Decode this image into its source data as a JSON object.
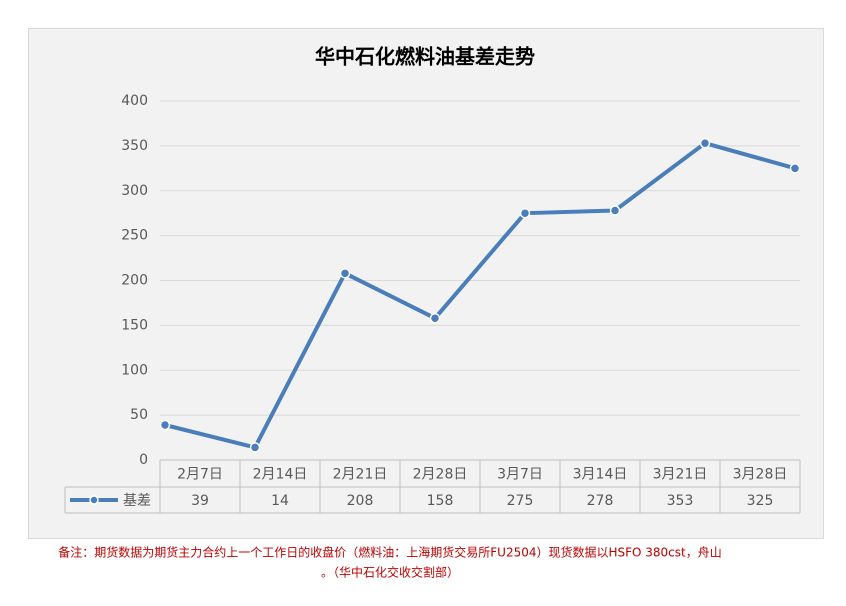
{
  "chart_data": {
    "type": "line",
    "title": "华中石化燃料油基差走势",
    "categories": [
      "2月7日",
      "2月14日",
      "2月21日",
      "2月28日",
      "3月7日",
      "3月14日",
      "3月21日",
      "3月28日"
    ],
    "series": [
      {
        "name": "基差",
        "color": "#4a7ebb",
        "values": [
          39,
          14,
          208,
          158,
          275,
          278,
          353,
          325
        ]
      }
    ],
    "ylim": [
      0,
      400
    ],
    "yticks": [
      0,
      50,
      100,
      150,
      200,
      250,
      300,
      350,
      400
    ],
    "grid": true
  },
  "note": [
    "备注：期货数据为期货主力合约上一个工作日的收盘价（燃料油：上海期货交易所FU2504）现货数据以HSFO 380cst，舟山",
    "。（华中石化交收交割部）"
  ]
}
